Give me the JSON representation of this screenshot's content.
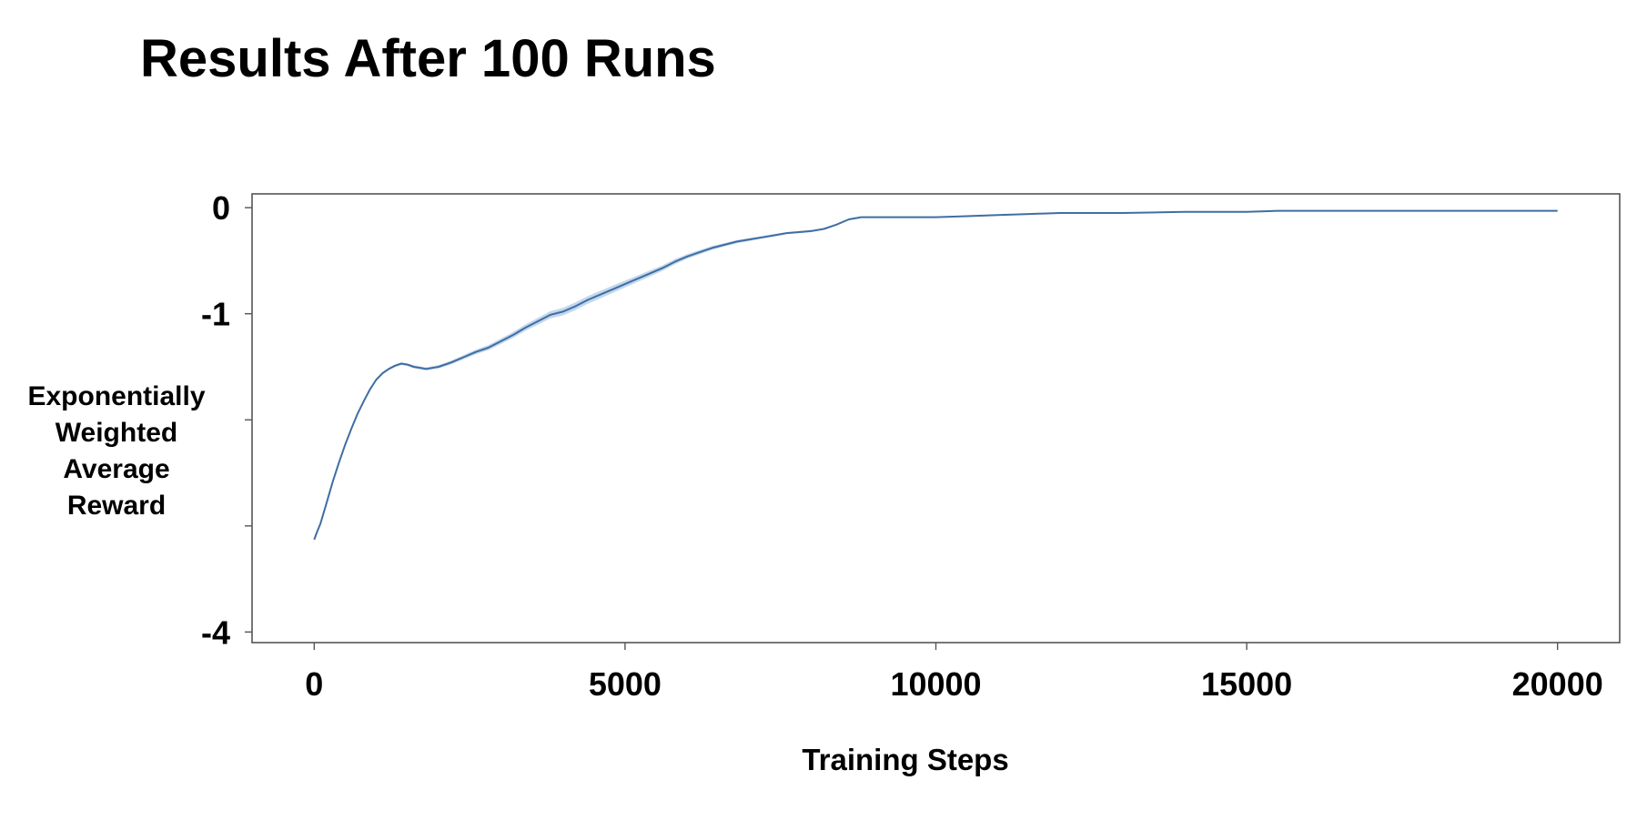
{
  "title": "Results After 100 Runs",
  "colors": {
    "line": "#3f6ea3",
    "band": "#a9c6e6",
    "frame": "#555555"
  },
  "chart_data": {
    "type": "line",
    "title": "Results After 100 Runs",
    "xlabel": "Training Steps",
    "ylabel_lines": [
      "Exponentially",
      "Weighted",
      "Average",
      "Reward"
    ],
    "xlim": [
      -1000,
      21000
    ],
    "ylim": [
      -4.1,
      0.13
    ],
    "x_ticks": [
      0,
      5000,
      10000,
      15000,
      20000
    ],
    "x_tick_labels": [
      "0",
      "5000",
      "10000",
      "15000",
      "20000"
    ],
    "y_ticks": [
      0,
      -1,
      -2,
      -3,
      -4
    ],
    "y_tick_labels": [
      "0",
      "-1",
      "",
      "",
      "-4"
    ],
    "grid": false,
    "legend": "none",
    "series": [
      {
        "x": [
          0,
          50,
          100,
          200,
          300,
          400,
          500,
          600,
          700,
          800,
          900,
          1000,
          1100,
          1200,
          1300,
          1400,
          1500,
          1600,
          1700,
          1800,
          2000,
          2200,
          2400,
          2600,
          2800,
          3000,
          3200,
          3400,
          3600,
          3800,
          4000,
          4200,
          4400,
          4600,
          4800,
          5000,
          5200,
          5400,
          5600,
          5800,
          6000,
          6200,
          6400,
          6600,
          6800,
          7000,
          7200,
          7400,
          7600,
          7800,
          8000,
          8200,
          8400,
          8600,
          8800,
          9000,
          9500,
          10000,
          10500,
          11000,
          11500,
          12000,
          12500,
          13000,
          14000,
          15000,
          15500,
          16000,
          17000,
          18000,
          19000,
          20000
        ],
        "y": [
          -3.13,
          -3.05,
          -2.98,
          -2.78,
          -2.58,
          -2.4,
          -2.23,
          -2.08,
          -1.94,
          -1.82,
          -1.71,
          -1.62,
          -1.56,
          -1.52,
          -1.49,
          -1.47,
          -1.48,
          -1.5,
          -1.51,
          -1.52,
          -1.5,
          -1.46,
          -1.41,
          -1.36,
          -1.32,
          -1.26,
          -1.2,
          -1.13,
          -1.07,
          -1.01,
          -0.98,
          -0.93,
          -0.87,
          -0.82,
          -0.77,
          -0.72,
          -0.67,
          -0.62,
          -0.57,
          -0.51,
          -0.46,
          -0.42,
          -0.38,
          -0.35,
          -0.32,
          -0.3,
          -0.28,
          -0.26,
          -0.24,
          -0.23,
          -0.22,
          -0.2,
          -0.16,
          -0.11,
          -0.09,
          -0.09,
          -0.09,
          -0.09,
          -0.08,
          -0.07,
          -0.06,
          -0.05,
          -0.05,
          -0.05,
          -0.04,
          -0.04,
          -0.03,
          -0.03,
          -0.03,
          -0.03,
          -0.03,
          -0.03
        ],
        "band": [
          0.005,
          0.01,
          0.01,
          0.01,
          0.01,
          0.01,
          0.01,
          0.01,
          0.01,
          0.01,
          0.01,
          0.01,
          0.01,
          0.01,
          0.012,
          0.012,
          0.012,
          0.014,
          0.014,
          0.015,
          0.016,
          0.018,
          0.02,
          0.022,
          0.024,
          0.026,
          0.028,
          0.03,
          0.032,
          0.034,
          0.036,
          0.036,
          0.036,
          0.036,
          0.034,
          0.032,
          0.03,
          0.028,
          0.026,
          0.024,
          0.022,
          0.02,
          0.018,
          0.016,
          0.015,
          0.014,
          0.012,
          0.011,
          0.01,
          0.01,
          0.01,
          0.008,
          0.006,
          0.005,
          0.005,
          0.005,
          0.004,
          0.004,
          0.004,
          0.004,
          0.004,
          0.003,
          0.003,
          0.003,
          0.003,
          0.003,
          0.003,
          0.003,
          0.003,
          0.003,
          0.003,
          0.003
        ]
      }
    ]
  }
}
